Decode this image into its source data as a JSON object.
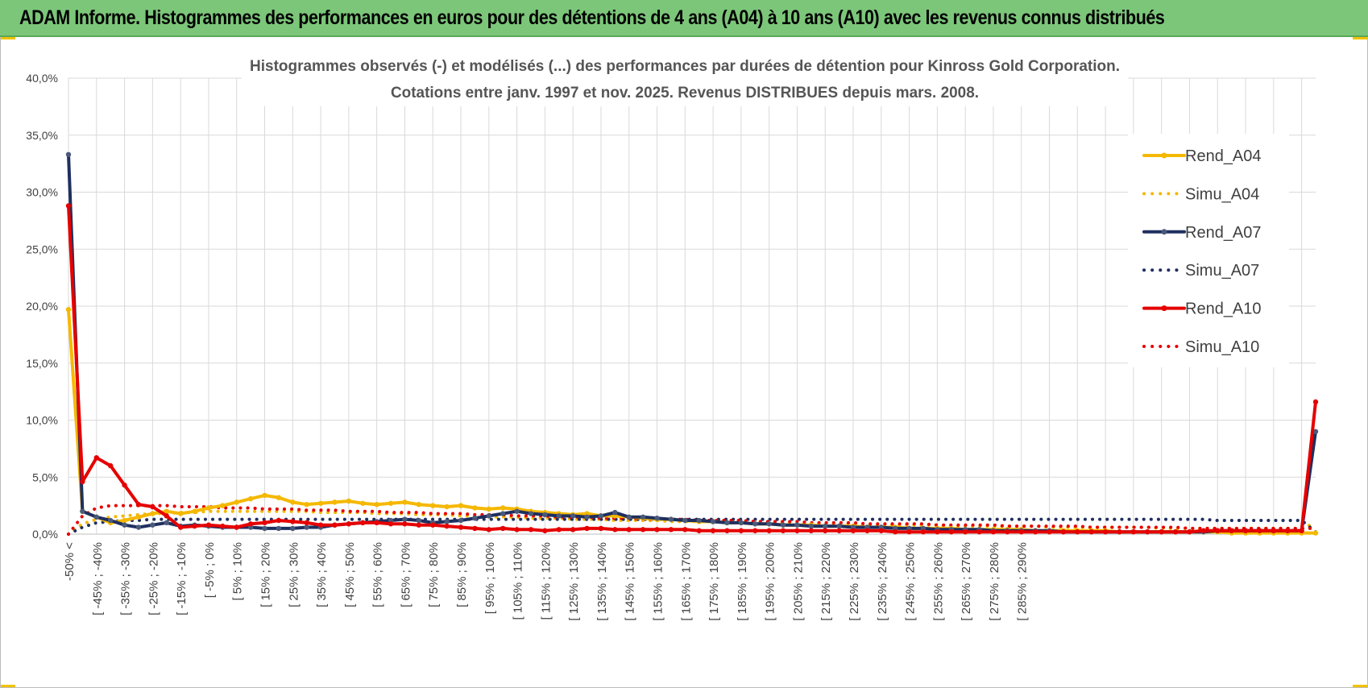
{
  "header": {
    "title": "ADAM Informe. Histogrammes des performances en euros pour des détentions de 4 ans (A04) à 10 ans (A10) avec les revenus connus distribués",
    "background_color": "#7cc67a"
  },
  "chart_data": {
    "type": "line",
    "title_line1": "Histogrammes observés (-) et modélisés (...) des performances par durées de détention pour Kinross Gold Corporation.",
    "title_line2": "Cotations entre janv. 1997 et nov. 2025. Revenus DISTRIBUES depuis mars. 2008.",
    "xlabel": "",
    "ylabel": "",
    "ylim": [
      0,
      40
    ],
    "y_ticks": [
      "0,0%",
      "5,0%",
      "10,0%",
      "15,0%",
      "20,0%",
      "25,0%",
      "30,0%",
      "35,0%",
      "40,0%"
    ],
    "grid": true,
    "legend_position": "right",
    "x_tick_labels": [
      "-50% <",
      "[ -45% ; -40%",
      "[ -35% ; -30%",
      "[ -25% ; -20%",
      "[ -15% ; -10%",
      "[ -5% ; 0%",
      "[ 5% ; 10%",
      "[ 15% ; 20%",
      "[ 25% ; 30%",
      "[ 35% ; 40%",
      "[ 45% ; 50%",
      "[ 55% ; 60%",
      "[ 65% ; 70%",
      "[ 75% ; 80%",
      "[ 85% ; 90%",
      "[ 95% ; 100%",
      "[ 105% ; 110%",
      "[ 115% ; 120%",
      "[ 125% ; 130%",
      "[ 135% ; 140%",
      "[ 145% ; 150%",
      "[ 155% ; 160%",
      "[ 165% ; 170%",
      "[ 175% ; 180%",
      "[ 185% ; 190%",
      "[ 195% ; 200%",
      "[ 205% ; 210%",
      "[ 215% ; 220%",
      "[ 225% ; 230%",
      "[ 235% ; 240%",
      "[ 245% ; 250%",
      "[ 255% ; 260%",
      "[ 265% ; 270%",
      "[ 275% ; 280%",
      "[ 285% ; 290%"
    ],
    "series": [
      {
        "name": "Rend_A04",
        "style": "solid",
        "color": "#f5b800",
        "values": [
          19.7,
          2.0,
          1.5,
          1.0,
          1.2,
          1.5,
          1.8,
          2.0,
          1.8,
          2.0,
          2.3,
          2.5,
          2.8,
          3.1,
          3.4,
          3.2,
          2.8,
          2.6,
          2.7,
          2.8,
          2.9,
          2.7,
          2.6,
          2.7,
          2.8,
          2.6,
          2.5,
          2.4,
          2.5,
          2.3,
          2.2,
          2.3,
          2.2,
          2.0,
          1.9,
          1.8,
          1.7,
          1.8,
          1.6,
          1.6,
          1.5,
          1.4,
          1.3,
          1.3,
          1.2,
          1.1,
          1.1,
          1.0,
          1.0,
          0.9,
          0.9,
          0.8,
          0.8,
          0.8,
          0.7,
          0.7,
          0.7,
          0.6,
          0.6,
          0.6,
          0.5,
          0.5,
          0.5,
          0.5,
          0.4,
          0.4,
          0.4,
          0.4,
          0.4,
          0.3,
          0.3,
          0.3,
          0.3,
          0.3,
          0.3,
          0.2,
          0.2,
          0.2,
          0.2,
          0.2,
          0.2,
          0.2,
          0.2,
          0.1,
          0.1,
          0.1,
          0.1,
          0.1,
          0.1,
          0.1
        ]
      },
      {
        "name": "Simu_A04",
        "style": "dotted",
        "color": "#f5b800",
        "values": [
          0.0,
          0.9,
          1.3,
          1.5,
          1.6,
          1.7,
          1.8,
          1.8,
          1.9,
          1.9,
          2.0,
          2.0,
          2.0,
          2.0,
          2.0,
          2.0,
          2.0,
          2.0,
          1.9,
          1.9,
          1.9,
          1.9,
          1.8,
          1.8,
          1.8,
          1.7,
          1.7,
          1.7,
          1.6,
          1.6,
          1.5,
          1.5,
          1.5,
          1.4,
          1.4,
          1.4,
          1.3,
          1.3,
          1.3,
          1.2,
          1.2,
          1.2,
          1.2,
          1.1,
          1.1,
          1.1,
          1.1,
          1.0,
          1.0,
          1.0,
          1.0,
          1.0,
          0.9,
          0.9,
          0.9,
          0.9,
          0.9,
          0.8,
          0.8,
          0.8,
          0.8,
          0.8,
          0.8,
          0.7,
          0.7,
          0.7,
          0.7,
          0.7,
          0.7,
          0.7,
          0.6,
          0.6,
          0.6,
          0.6,
          0.6,
          0.6,
          0.6,
          0.6,
          0.5,
          0.5,
          0.5,
          0.5,
          0.5,
          0.5,
          0.5,
          0.5,
          0.5,
          0.5,
          0.5,
          1.0
        ]
      },
      {
        "name": "Rend_A07",
        "style": "solid",
        "color": "#1f2f5f",
        "values": [
          33.3,
          2.0,
          1.5,
          1.2,
          0.8,
          0.6,
          0.8,
          1.0,
          0.7,
          0.8,
          0.7,
          0.6,
          0.6,
          0.6,
          0.5,
          0.5,
          0.5,
          0.6,
          0.6,
          0.8,
          0.9,
          1.0,
          1.1,
          1.2,
          1.3,
          1.2,
          1.0,
          1.1,
          1.2,
          1.4,
          1.6,
          1.8,
          2.0,
          1.8,
          1.7,
          1.6,
          1.6,
          1.5,
          1.6,
          1.9,
          1.5,
          1.5,
          1.4,
          1.3,
          1.2,
          1.2,
          1.1,
          1.0,
          1.0,
          0.9,
          0.9,
          0.8,
          0.8,
          0.7,
          0.7,
          0.7,
          0.6,
          0.6,
          0.6,
          0.5,
          0.5,
          0.5,
          0.4,
          0.4,
          0.4,
          0.4,
          0.3,
          0.3,
          0.3,
          0.3,
          0.3,
          0.2,
          0.2,
          0.2,
          0.2,
          0.2,
          0.2,
          0.2,
          0.2,
          0.2,
          0.2,
          0.2,
          0.3,
          0.3,
          0.3,
          0.3,
          0.3,
          0.3,
          0.3,
          9.0
        ]
      },
      {
        "name": "Simu_A07",
        "style": "dotted",
        "color": "#1f2f5f",
        "values": [
          0.0,
          0.6,
          1.0,
          1.1,
          1.2,
          1.2,
          1.3,
          1.3,
          1.3,
          1.3,
          1.3,
          1.3,
          1.3,
          1.3,
          1.3,
          1.3,
          1.3,
          1.3,
          1.3,
          1.3,
          1.3,
          1.3,
          1.3,
          1.3,
          1.3,
          1.3,
          1.3,
          1.3,
          1.3,
          1.3,
          1.3,
          1.3,
          1.3,
          1.3,
          1.3,
          1.3,
          1.3,
          1.3,
          1.3,
          1.3,
          1.3,
          1.3,
          1.3,
          1.3,
          1.3,
          1.3,
          1.3,
          1.3,
          1.3,
          1.3,
          1.3,
          1.3,
          1.3,
          1.3,
          1.3,
          1.3,
          1.3,
          1.3,
          1.3,
          1.3,
          1.3,
          1.3,
          1.3,
          1.3,
          1.3,
          1.3,
          1.3,
          1.3,
          1.3,
          1.3,
          1.3,
          1.3,
          1.3,
          1.3,
          1.3,
          1.3,
          1.3,
          1.3,
          1.3,
          1.3,
          1.3,
          1.3,
          1.2,
          1.2,
          1.2,
          1.2,
          1.2,
          1.2,
          1.2,
          0.2
        ]
      },
      {
        "name": "Rend_A10",
        "style": "solid",
        "color": "#e60000",
        "values": [
          28.8,
          4.6,
          6.7,
          6.0,
          4.3,
          2.6,
          2.4,
          1.6,
          0.6,
          0.7,
          0.8,
          0.7,
          0.6,
          0.9,
          1.0,
          1.2,
          1.1,
          1.0,
          0.8,
          0.8,
          0.9,
          1.0,
          1.0,
          0.9,
          0.9,
          0.8,
          0.8,
          0.7,
          0.6,
          0.5,
          0.4,
          0.5,
          0.4,
          0.4,
          0.3,
          0.4,
          0.4,
          0.5,
          0.5,
          0.4,
          0.4,
          0.4,
          0.4,
          0.4,
          0.4,
          0.3,
          0.3,
          0.3,
          0.3,
          0.3,
          0.3,
          0.3,
          0.3,
          0.3,
          0.3,
          0.3,
          0.3,
          0.3,
          0.3,
          0.2,
          0.2,
          0.2,
          0.2,
          0.2,
          0.2,
          0.2,
          0.2,
          0.2,
          0.2,
          0.2,
          0.2,
          0.2,
          0.2,
          0.2,
          0.2,
          0.2,
          0.2,
          0.2,
          0.2,
          0.2,
          0.2,
          0.3,
          0.3,
          0.3,
          0.3,
          0.3,
          0.3,
          0.3,
          0.3,
          11.6
        ]
      },
      {
        "name": "Simu_A10",
        "style": "dotted",
        "color": "#e60000",
        "values": [
          0.0,
          1.6,
          2.3,
          2.5,
          2.5,
          2.5,
          2.5,
          2.5,
          2.4,
          2.4,
          2.4,
          2.3,
          2.3,
          2.3,
          2.2,
          2.2,
          2.2,
          2.1,
          2.1,
          2.1,
          2.0,
          2.0,
          2.0,
          1.9,
          1.9,
          1.9,
          1.8,
          1.8,
          1.8,
          1.7,
          1.7,
          1.7,
          1.6,
          1.6,
          1.6,
          1.5,
          1.5,
          1.5,
          1.4,
          1.4,
          1.4,
          1.3,
          1.3,
          1.3,
          1.3,
          1.2,
          1.2,
          1.2,
          1.2,
          1.1,
          1.1,
          1.1,
          1.1,
          1.0,
          1.0,
          1.0,
          1.0,
          0.9,
          0.9,
          0.9,
          0.9,
          0.9,
          0.8,
          0.8,
          0.8,
          0.8,
          0.8,
          0.7,
          0.7,
          0.7,
          0.7,
          0.7,
          0.7,
          0.6,
          0.6,
          0.6,
          0.6,
          0.6,
          0.6,
          0.6,
          0.5,
          0.5,
          0.5,
          0.5,
          0.5,
          0.5,
          0.5,
          0.5,
          0.5,
          0.5
        ]
      }
    ]
  }
}
